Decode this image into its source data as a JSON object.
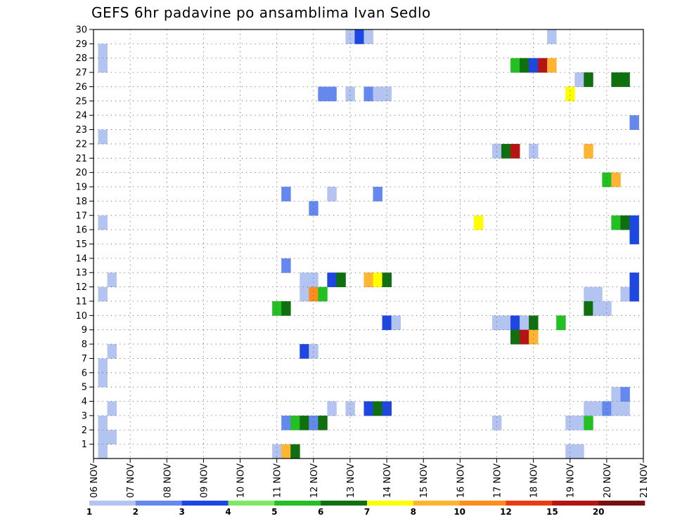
{
  "title": "GEFS 6hr padavine po ansamblima Ivan Sedlo",
  "chart_data": {
    "type": "heatmap",
    "title": "GEFS 6hr padavine po ansamblima Ivan Sedlo",
    "xlabel": "",
    "ylabel": "",
    "x_tick_labels": [
      "06 NOV",
      "07 NOV",
      "08 NOV",
      "09 NOV",
      "10 NOV",
      "11 NOV",
      "12 NOV",
      "13 NOV",
      "14 NOV",
      "15 NOV",
      "16 NOV",
      "17 NOV",
      "18 NOV",
      "19 NOV",
      "20 NOV",
      "21 NOV"
    ],
    "y_tick_labels": [
      "1",
      "2",
      "3",
      "4",
      "5",
      "6",
      "7",
      "8",
      "9",
      "10",
      "11",
      "12",
      "13",
      "14",
      "15",
      "16",
      "17",
      "18",
      "19",
      "20",
      "21",
      "22",
      "23",
      "24",
      "25",
      "26",
      "27",
      "28",
      "29",
      "30"
    ],
    "x_unit": "days since 06 NOV (6-hourly steps of 0.25)",
    "y_range": [
      0,
      30
    ],
    "grid": true,
    "colorbar": {
      "labels": [
        "1",
        "2",
        "3",
        "4",
        "5",
        "6",
        "7",
        "8",
        "10",
        "12",
        "15",
        "20"
      ],
      "colors": [
        "#b4c4f0",
        "#6488ee",
        "#1e46e0",
        "#7ee862",
        "#22c022",
        "#107010",
        "#ffff00",
        "#ffb432",
        "#ff8c1e",
        "#e83c14",
        "#b41414",
        "#781010"
      ]
    },
    "cells": [
      {
        "t": 0.25,
        "m": 0.5,
        "v": 1
      },
      {
        "t": 0.25,
        "m": 1.5,
        "v": 1
      },
      {
        "t": 0.5,
        "m": 1.5,
        "v": 1
      },
      {
        "t": 0.25,
        "m": 2.5,
        "v": 1
      },
      {
        "t": 0.5,
        "m": 3.5,
        "v": 1
      },
      {
        "t": 0.25,
        "m": 5.5,
        "v": 1
      },
      {
        "t": 0.25,
        "m": 6.5,
        "v": 1
      },
      {
        "t": 0.5,
        "m": 7.5,
        "v": 1
      },
      {
        "t": 0.25,
        "m": 11.5,
        "v": 1
      },
      {
        "t": 0.5,
        "m": 12.5,
        "v": 1
      },
      {
        "t": 0.25,
        "m": 16.5,
        "v": 1
      },
      {
        "t": 0.25,
        "m": 22.5,
        "v": 1
      },
      {
        "t": 0.25,
        "m": 27.5,
        "v": 1
      },
      {
        "t": 0.25,
        "m": 28.5,
        "v": 1
      },
      {
        "t": 5.0,
        "m": 0.5,
        "v": 1
      },
      {
        "t": 5.25,
        "m": 0.5,
        "v": 8
      },
      {
        "t": 5.5,
        "m": 0.5,
        "v": 6
      },
      {
        "t": 5.25,
        "m": 2.5,
        "v": 2
      },
      {
        "t": 5.5,
        "m": 2.5,
        "v": 5
      },
      {
        "t": 5.75,
        "m": 2.5,
        "v": 6
      },
      {
        "t": 6.0,
        "m": 2.5,
        "v": 2
      },
      {
        "t": 6.25,
        "m": 2.5,
        "v": 6
      },
      {
        "t": 6.5,
        "m": 3.5,
        "v": 1
      },
      {
        "t": 7.0,
        "m": 3.5,
        "v": 1
      },
      {
        "t": 7.5,
        "m": 3.5,
        "v": 3
      },
      {
        "t": 7.75,
        "m": 3.5,
        "v": 6
      },
      {
        "t": 8.0,
        "m": 3.5,
        "v": 3
      },
      {
        "t": 6.0,
        "m": -0.5,
        "v": 2
      },
      {
        "t": 6.25,
        "m": -0.5,
        "v": 5
      },
      {
        "t": 6.5,
        "m": -0.5,
        "v": 2
      },
      {
        "t": 5.75,
        "m": 7.5,
        "v": 3
      },
      {
        "t": 6.0,
        "m": 7.5,
        "v": 1
      },
      {
        "t": 5.0,
        "m": 10.5,
        "v": 5
      },
      {
        "t": 5.25,
        "m": 10.5,
        "v": 6
      },
      {
        "t": 5.75,
        "m": 11.5,
        "v": 1
      },
      {
        "t": 6.0,
        "m": 11.5,
        "v": 10
      },
      {
        "t": 6.25,
        "m": 11.5,
        "v": 5
      },
      {
        "t": 5.75,
        "m": 12.5,
        "v": 1
      },
      {
        "t": 6.0,
        "m": 12.5,
        "v": 1
      },
      {
        "t": 6.5,
        "m": 12.5,
        "v": 3
      },
      {
        "t": 6.75,
        "m": 12.5,
        "v": 6
      },
      {
        "t": 7.5,
        "m": 12.5,
        "v": 8
      },
      {
        "t": 7.75,
        "m": 12.5,
        "v": 7
      },
      {
        "t": 8.0,
        "m": 12.5,
        "v": 6
      },
      {
        "t": 5.25,
        "m": 13.5,
        "v": 2
      },
      {
        "t": 5.25,
        "m": 18.5,
        "v": 2
      },
      {
        "t": 6.5,
        "m": 18.5,
        "v": 1
      },
      {
        "t": 7.75,
        "m": 18.5,
        "v": 2
      },
      {
        "t": 6.0,
        "m": 17.5,
        "v": 2
      },
      {
        "t": 8.0,
        "m": 9.5,
        "v": 3
      },
      {
        "t": 8.25,
        "m": 9.5,
        "v": 1
      },
      {
        "t": 6.25,
        "m": 25.5,
        "v": 2
      },
      {
        "t": 6.5,
        "m": 25.5,
        "v": 2
      },
      {
        "t": 7.0,
        "m": 25.5,
        "v": 1
      },
      {
        "t": 7.5,
        "m": 25.5,
        "v": 2
      },
      {
        "t": 7.75,
        "m": 25.5,
        "v": 1
      },
      {
        "t": 8.0,
        "m": 25.5,
        "v": 1
      },
      {
        "t": 7.0,
        "m": 29.5,
        "v": 1
      },
      {
        "t": 7.25,
        "m": 29.5,
        "v": 3
      },
      {
        "t": 7.5,
        "m": 29.5,
        "v": 1
      },
      {
        "t": 10.5,
        "m": 16.5,
        "v": 7
      },
      {
        "t": 11.0,
        "m": 2.5,
        "v": 1
      },
      {
        "t": 11.0,
        "m": 9.5,
        "v": 1
      },
      {
        "t": 11.25,
        "m": 9.5,
        "v": 1
      },
      {
        "t": 11.5,
        "m": 9.5,
        "v": 3
      },
      {
        "t": 11.75,
        "m": 9.5,
        "v": 1
      },
      {
        "t": 12.0,
        "m": 9.5,
        "v": 6
      },
      {
        "t": 12.75,
        "m": 9.5,
        "v": 5
      },
      {
        "t": 11.5,
        "m": 8.5,
        "v": 6
      },
      {
        "t": 11.75,
        "m": 8.5,
        "v": 15
      },
      {
        "t": 12.0,
        "m": 8.5,
        "v": 8
      },
      {
        "t": 11.0,
        "m": 21.5,
        "v": 1
      },
      {
        "t": 11.25,
        "m": 21.5,
        "v": 6
      },
      {
        "t": 11.5,
        "m": 21.5,
        "v": 15
      },
      {
        "t": 12.0,
        "m": 21.5,
        "v": 1
      },
      {
        "t": 11.5,
        "m": 27.5,
        "v": 5
      },
      {
        "t": 11.75,
        "m": 27.5,
        "v": 6
      },
      {
        "t": 12.0,
        "m": 27.5,
        "v": 3
      },
      {
        "t": 12.25,
        "m": 27.5,
        "v": 15
      },
      {
        "t": 12.5,
        "m": 27.5,
        "v": 8
      },
      {
        "t": 12.5,
        "m": 29.5,
        "v": 1
      },
      {
        "t": 13.25,
        "m": 26.5,
        "v": 1
      },
      {
        "t": 13.5,
        "m": 26.5,
        "v": 6
      },
      {
        "t": 14.25,
        "m": 26.5,
        "v": 6
      },
      {
        "t": 14.5,
        "m": 26.5,
        "v": 6
      },
      {
        "t": 13.0,
        "m": 25.5,
        "v": 7
      },
      {
        "t": 13.5,
        "m": 21.5,
        "v": 8
      },
      {
        "t": 14.0,
        "m": 19.5,
        "v": 5
      },
      {
        "t": 14.25,
        "m": 19.5,
        "v": 8
      },
      {
        "t": 14.25,
        "m": 16.5,
        "v": 5
      },
      {
        "t": 14.5,
        "m": 16.5,
        "v": 6
      },
      {
        "t": 14.75,
        "m": 16.5,
        "v": 3
      },
      {
        "t": 13.5,
        "m": 11.5,
        "v": 1
      },
      {
        "t": 13.75,
        "m": 11.5,
        "v": 1
      },
      {
        "t": 14.5,
        "m": 11.5,
        "v": 1
      },
      {
        "t": 14.75,
        "m": 11.5,
        "v": 3
      },
      {
        "t": 13.5,
        "m": 10.5,
        "v": 6
      },
      {
        "t": 13.75,
        "m": 10.5,
        "v": 1
      },
      {
        "t": 14.0,
        "m": 10.5,
        "v": 1
      },
      {
        "t": 13.0,
        "m": 2.5,
        "v": 1
      },
      {
        "t": 13.25,
        "m": 2.5,
        "v": 1
      },
      {
        "t": 13.5,
        "m": 2.5,
        "v": 5
      },
      {
        "t": 13.0,
        "m": 0.5,
        "v": 1
      },
      {
        "t": 13.25,
        "m": 0.5,
        "v": 1
      },
      {
        "t": 13.5,
        "m": 3.5,
        "v": 1
      },
      {
        "t": 13.75,
        "m": 3.5,
        "v": 1
      },
      {
        "t": 14.0,
        "m": 3.5,
        "v": 2
      },
      {
        "t": 14.25,
        "m": 3.5,
        "v": 1
      },
      {
        "t": 14.5,
        "m": 3.5,
        "v": 1
      },
      {
        "t": 14.25,
        "m": 4.5,
        "v": 1
      },
      {
        "t": 14.5,
        "m": 4.5,
        "v": 2
      },
      {
        "t": 14.75,
        "m": 23.5,
        "v": 2
      },
      {
        "t": 14.75,
        "m": 15.5,
        "v": 3
      },
      {
        "t": 14.75,
        "m": 12.5,
        "v": 3
      },
      {
        "t": 13.75,
        "m": -0.5,
        "v": 1
      },
      {
        "t": 14.0,
        "m": -0.5,
        "v": 1
      },
      {
        "t": 14.75,
        "m": -0.5,
        "v": 3
      }
    ]
  }
}
